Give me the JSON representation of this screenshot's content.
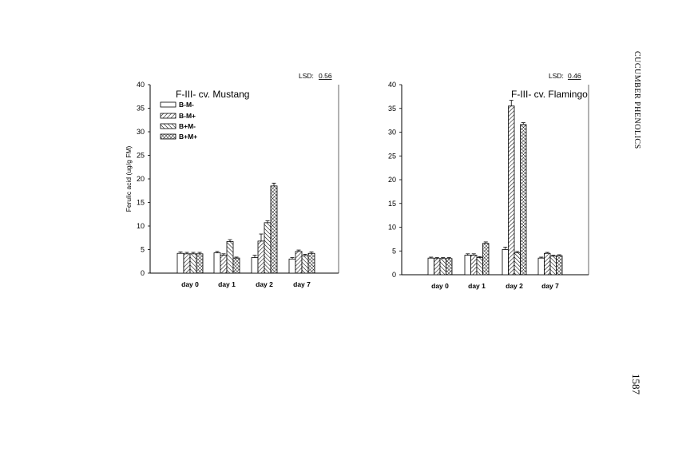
{
  "page": {
    "running_head": "CUCUMBER PHENOLICS",
    "page_number": "1587"
  },
  "chart_data": [
    {
      "type": "bar",
      "title": "F-III- cv. Mustang",
      "ylabel": "Ferulic acid (ug/g FM)",
      "xlabel": "",
      "lsd_label": "LSD:",
      "lsd_value": "0.56",
      "ylim": [
        0,
        40
      ],
      "yticks": [
        "0",
        "5",
        "10",
        "15",
        "20",
        "25",
        "30",
        "35",
        "40"
      ],
      "categories": [
        "day 0",
        "day 1",
        "day 2",
        "day 7"
      ],
      "legend": "top-left",
      "series": [
        {
          "name": "B-M-",
          "pattern": "empty",
          "values": [
            4.2,
            4.3,
            3.3,
            3.0
          ],
          "errors": [
            0.3,
            0.3,
            0.5,
            0.3
          ]
        },
        {
          "name": "B-M+",
          "pattern": "diag-right",
          "values": [
            4.1,
            3.8,
            6.8,
            4.6
          ],
          "errors": [
            0.3,
            0.3,
            1.5,
            0.3
          ]
        },
        {
          "name": "B+M-",
          "pattern": "diag-left",
          "values": [
            4.1,
            6.7,
            10.7,
            3.7
          ],
          "errors": [
            0.3,
            0.4,
            0.4,
            0.3
          ]
        },
        {
          "name": "B+M+",
          "pattern": "crosshatch",
          "values": [
            4.1,
            3.2,
            18.5,
            4.2
          ],
          "errors": [
            0.3,
            0.2,
            0.6,
            0.3
          ]
        }
      ]
    },
    {
      "type": "bar",
      "title": "F-III- cv. Flamingo",
      "ylabel": "",
      "xlabel": "",
      "lsd_label": "LSD:",
      "lsd_value": "0.46",
      "ylim": [
        0,
        40
      ],
      "yticks": [
        "0",
        "5",
        "10",
        "15",
        "20",
        "25",
        "30",
        "35",
        "40"
      ],
      "categories": [
        "day 0",
        "day 1",
        "day 2",
        "day 7"
      ],
      "series": [
        {
          "name": "B-M-",
          "pattern": "empty",
          "values": [
            3.5,
            4.1,
            5.3,
            3.5
          ],
          "errors": [
            0.2,
            0.3,
            0.5,
            0.2
          ]
        },
        {
          "name": "B-M+",
          "pattern": "diag-right",
          "values": [
            3.4,
            4.1,
            35.5,
            4.5
          ],
          "errors": [
            0.2,
            0.3,
            1.2,
            0.2
          ]
        },
        {
          "name": "B+M-",
          "pattern": "diag-left",
          "values": [
            3.4,
            3.6,
            4.6,
            3.9
          ],
          "errors": [
            0.2,
            0.2,
            0.3,
            0.2
          ]
        },
        {
          "name": "B+M+",
          "pattern": "crosshatch",
          "values": [
            3.4,
            6.6,
            31.6,
            4.0
          ],
          "errors": [
            0.2,
            0.3,
            0.4,
            0.2
          ]
        }
      ]
    }
  ]
}
